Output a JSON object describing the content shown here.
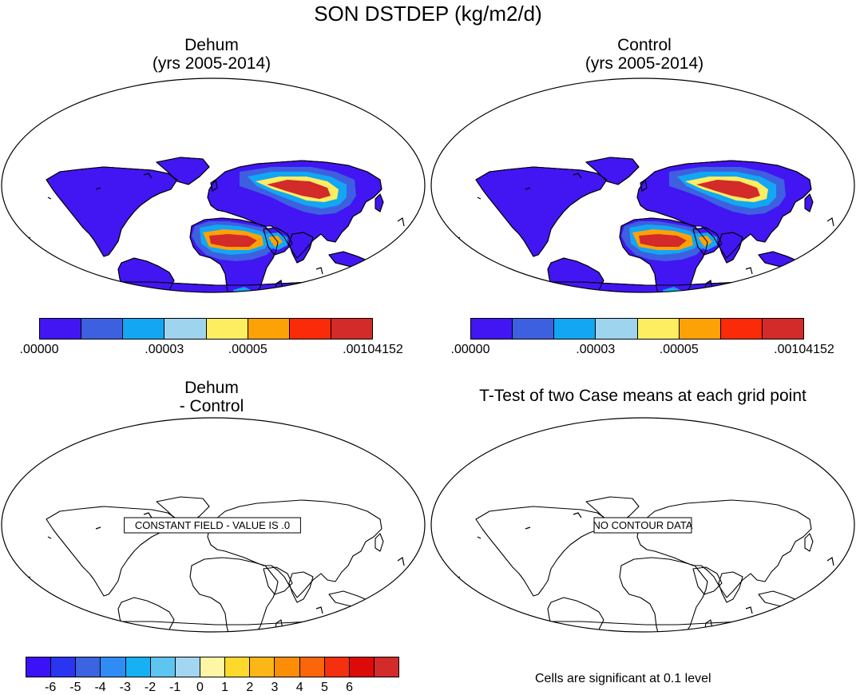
{
  "figure": {
    "title": "SON DSTDEP (kg/m2/d)"
  },
  "panels": {
    "top_left": {
      "title_line1": "Dehum",
      "title_line2": "(yrs 2005-2014)"
    },
    "top_right": {
      "title_line1": "Control",
      "title_line2": "(yrs 2005-2014)"
    },
    "bottom_left": {
      "title_line1": "Dehum",
      "title_line2": "- Control",
      "message": "CONSTANT FIELD - VALUE IS .0"
    },
    "bottom_right": {
      "title": "T-Test of two Case means at each grid point",
      "message": "NO CONTOUR DATA"
    }
  },
  "colorbar_abs": {
    "colors": [
      "#4116f2",
      "#3d60e0",
      "#13a6f3",
      "#9fd4ef",
      "#fded61",
      "#fca207",
      "#fb2a08",
      "#d32a2a"
    ],
    "labels": [
      ".00000",
      ".00003",
      ".00005",
      ".00104152"
    ]
  },
  "colorbar_diff": {
    "colors": [
      "#3b12f5",
      "#2a35f2",
      "#3c63e0",
      "#2f8cf5",
      "#17b0f4",
      "#5ec4f0",
      "#a3d6f0",
      "#fff6a5",
      "#fdd92b",
      "#fcb616",
      "#fb8d07",
      "#fb660a",
      "#f4300f",
      "#dd0a0a",
      "#d32a2a"
    ],
    "labels": [
      "-6",
      "-5",
      "-4",
      "-3",
      "-2",
      "-1",
      "0",
      "1",
      "2",
      "3",
      "4",
      "5",
      "6"
    ]
  },
  "footnote": "Cells are significant at 0.1 level",
  "map_colors": {
    "ocean": "#ffffff",
    "land_low": "#4116f2",
    "dust_low": "#3d60e0",
    "dust_mid": "#13a6f3",
    "dust_light": "#9fd4ef",
    "dust_yellow": "#fded61",
    "dust_orange": "#fca207",
    "dust_red": "#d32a2a"
  }
}
